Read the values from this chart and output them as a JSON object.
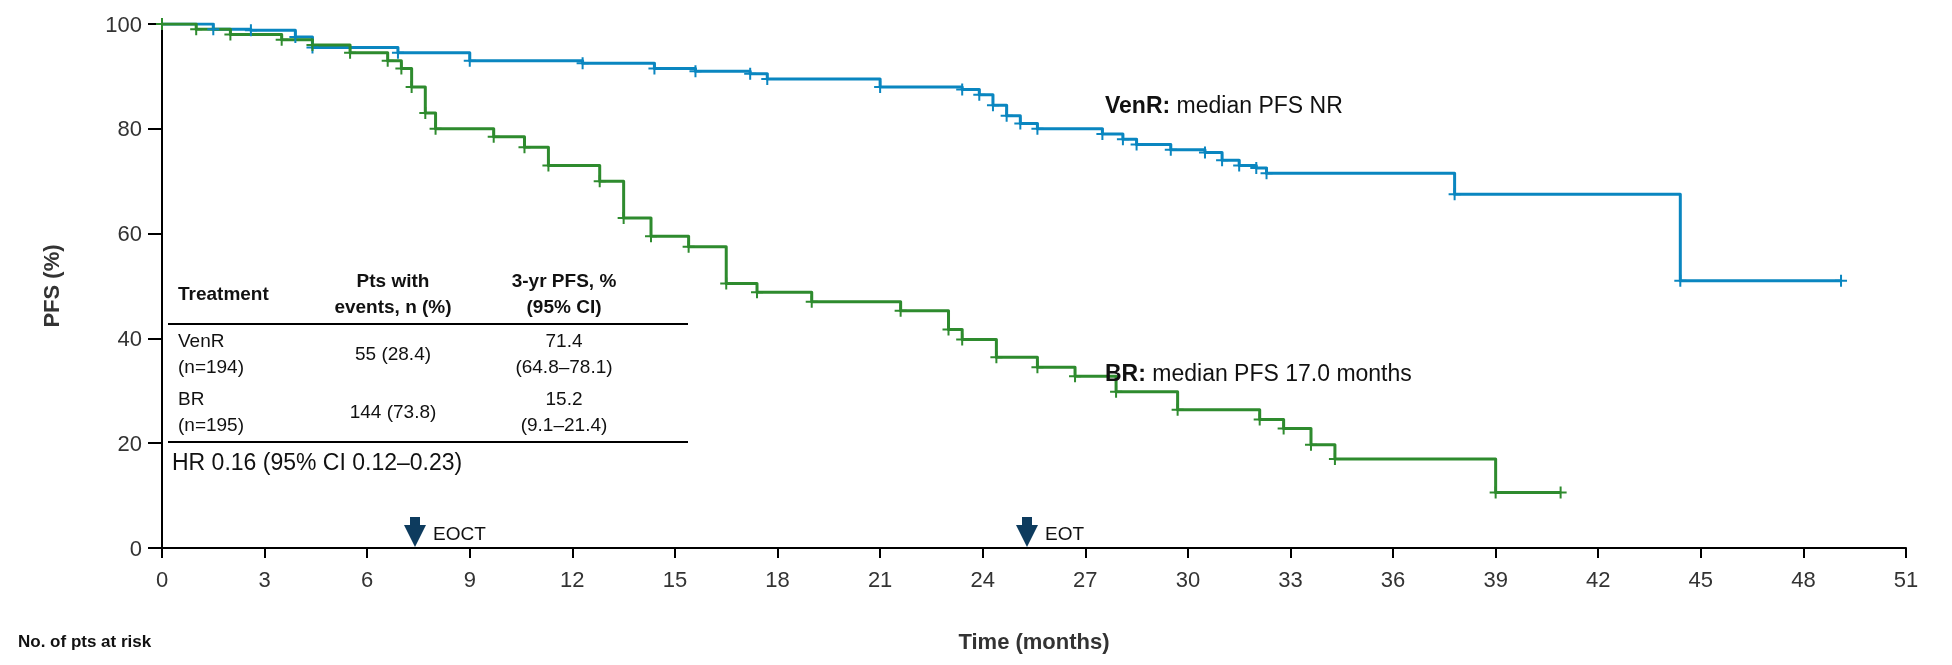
{
  "chart_data": {
    "type": "step",
    "xlabel": "Time (months)",
    "ylabel": "PFS (%)",
    "xlim": [
      0,
      51
    ],
    "xticks": [
      0,
      3,
      6,
      9,
      12,
      15,
      18,
      21,
      24,
      27,
      30,
      33,
      36,
      39,
      42,
      45,
      48,
      51
    ],
    "ylim": [
      0,
      100
    ],
    "yticks": [
      0,
      20,
      40,
      60,
      80,
      100
    ],
    "grid": false,
    "marker": "cross",
    "line_style": "solid",
    "series": [
      {
        "color": "#0a86c0",
        "x": [
          0,
          1.5,
          2.6,
          3.9,
          4.4,
          6.9,
          9.0,
          12.3,
          14.4,
          15.6,
          17.2,
          17.7,
          21,
          23.4,
          23.9,
          24.3,
          24.7,
          25.1,
          25.6,
          27.5,
          28.1,
          28.5,
          29.5,
          30.5,
          31,
          31.5,
          32,
          32.3,
          37.8,
          44.4,
          49.1
        ],
        "values": [
          100,
          99,
          98.8,
          97.5,
          95.5,
          94.5,
          93,
          92.5,
          91.5,
          91,
          90.5,
          89.5,
          88,
          87.5,
          86.5,
          84.5,
          82.5,
          81,
          80,
          79,
          78,
          77,
          76,
          75.5,
          74,
          73,
          72.5,
          71.5,
          67.5,
          51,
          51
        ]
      },
      {
        "color": "#2e8b2e",
        "x": [
          0,
          1,
          2,
          3.5,
          4.4,
          5.5,
          6.6,
          7,
          7.3,
          7.7,
          8,
          9.7,
          10.6,
          11.3,
          12.8,
          13.5,
          14.3,
          15.4,
          16.5,
          17.4,
          19,
          21.6,
          23,
          23.4,
          24.4,
          25.6,
          26.7,
          27.9,
          29.7,
          32.1,
          32.8,
          33.6,
          34.3,
          39,
          40.9
        ],
        "values": [
          100,
          99,
          98,
          97,
          96,
          94.5,
          93,
          91.5,
          88,
          83,
          80,
          78.5,
          76.5,
          73,
          70,
          63,
          59.5,
          57.5,
          50.5,
          48.8,
          47,
          45.3,
          41.7,
          39.8,
          36.4,
          34.5,
          32.8,
          29.8,
          26.4,
          24.5,
          22.8,
          19.7,
          17,
          10.6,
          10.6
        ]
      }
    ],
    "annotations": [
      "Treatment",
      "Pts with events, n (%)",
      "3-yr PFS, % (95% CI)",
      "VenR (n=194)",
      "55 (28.4)",
      "71.4 (64.8–78.1)",
      "BR (n=195)",
      "144 (73.8)",
      "15.2 (9.1–21.4)",
      "HR 0.16 (95% CI 0.12–0.23)",
      "No. of pts at risk",
      "VenR: median PFS NR",
      "BR: median PFS 17.0 months",
      "EOCT",
      "EOT"
    ]
  }
}
